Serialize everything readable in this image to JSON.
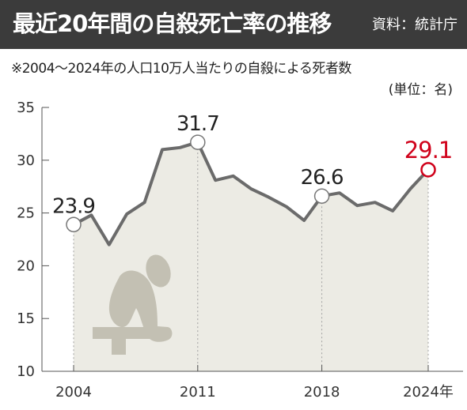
{
  "header": {
    "title": "最近20年間の自殺死亡率の推移",
    "source": "資料：統計庁"
  },
  "note": "※2004〜2024年の人口10万人当たりの自殺による死者数",
  "unit": "(単位：名)",
  "colors": {
    "header_bg": "#3b3b3b",
    "area_fill": "#ecebe4",
    "line": "#6b6b6b",
    "marker_fill": "#ffffff",
    "highlight": "#d0021b",
    "icon": "#c3c0b3"
  },
  "icon": "person-sitting-head-down-icon",
  "chart_data": {
    "type": "area",
    "x": [
      2004,
      2005,
      2006,
      2007,
      2008,
      2009,
      2010,
      2011,
      2012,
      2013,
      2014,
      2015,
      2016,
      2017,
      2018,
      2019,
      2020,
      2021,
      2022,
      2023,
      2024
    ],
    "series": [
      {
        "values": [
          23.9,
          24.8,
          22.0,
          24.9,
          26.0,
          31.0,
          31.2,
          31.7,
          28.1,
          28.5,
          27.3,
          26.5,
          25.6,
          24.3,
          26.6,
          26.9,
          25.7,
          26.0,
          25.2,
          27.3,
          29.1
        ]
      }
    ],
    "xticks": [
      "2004",
      "2011",
      "2018",
      "2024年"
    ],
    "xtick_values": [
      2004,
      2011,
      2018,
      2024
    ],
    "yticks": [
      "10",
      "15",
      "20",
      "25",
      "30",
      "35"
    ],
    "ylim": [
      10,
      35
    ],
    "annotations": [
      {
        "x": 2004,
        "y": 23.9,
        "label": "23.9"
      },
      {
        "x": 2011,
        "y": 31.7,
        "label": "31.7"
      },
      {
        "x": 2018,
        "y": 26.6,
        "label": "26.6"
      },
      {
        "x": 2024,
        "y": 29.1,
        "label": "29.1",
        "highlight": true
      }
    ]
  }
}
